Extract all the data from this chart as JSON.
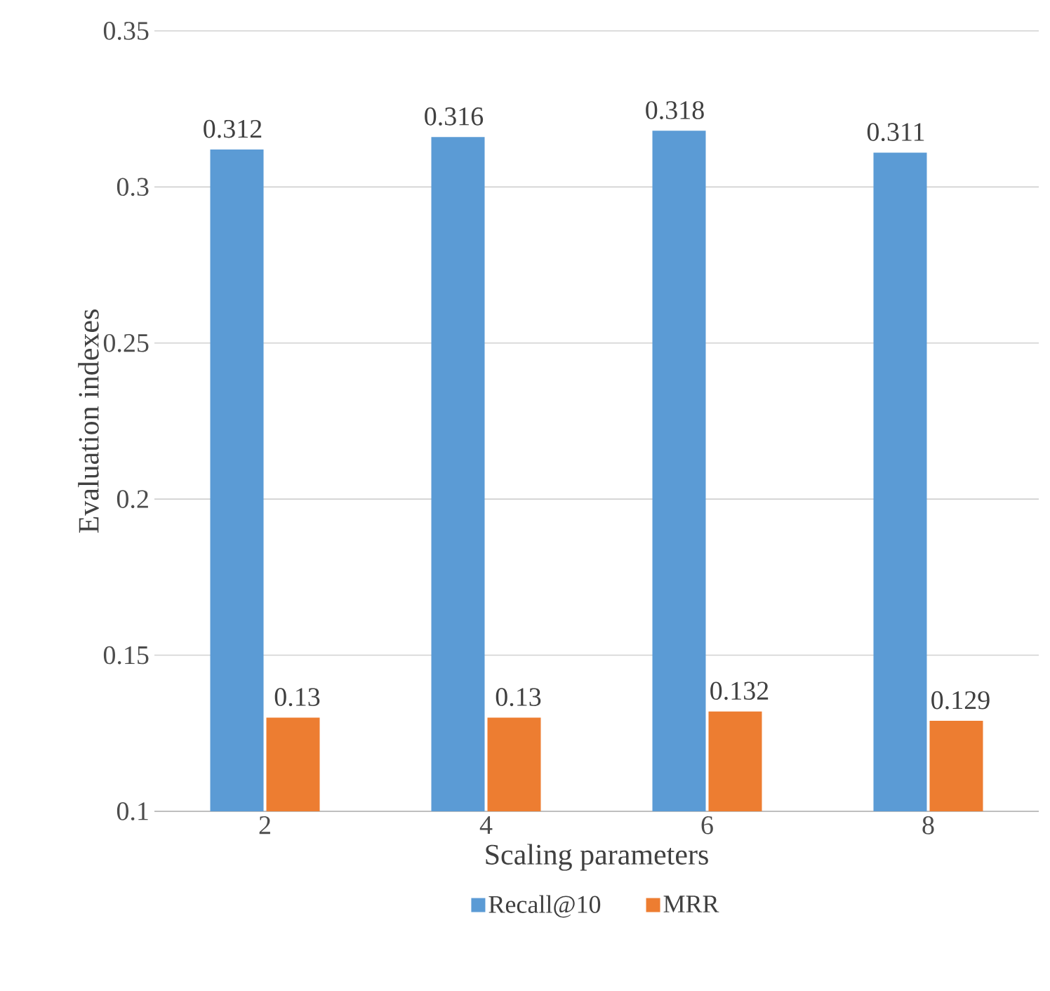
{
  "chart_data": {
    "type": "bar",
    "xlabel": "Scaling parameters",
    "ylabel": "Evaluation indexes",
    "categories": [
      "2",
      "4",
      "6",
      "8"
    ],
    "series": [
      {
        "name": "Recall@10",
        "color": "#5b9bd5",
        "values": [
          0.312,
          0.316,
          0.318,
          0.311
        ]
      },
      {
        "name": "MRR",
        "color": "#ed7d31",
        "values": [
          0.13,
          0.13,
          0.132,
          0.129
        ]
      }
    ],
    "ylim": [
      0.1,
      0.35
    ],
    "yticks": [
      0.1,
      0.15,
      0.2,
      0.25,
      0.3,
      0.35
    ],
    "grid": "y",
    "legend": "bottom",
    "data_labels": true
  }
}
